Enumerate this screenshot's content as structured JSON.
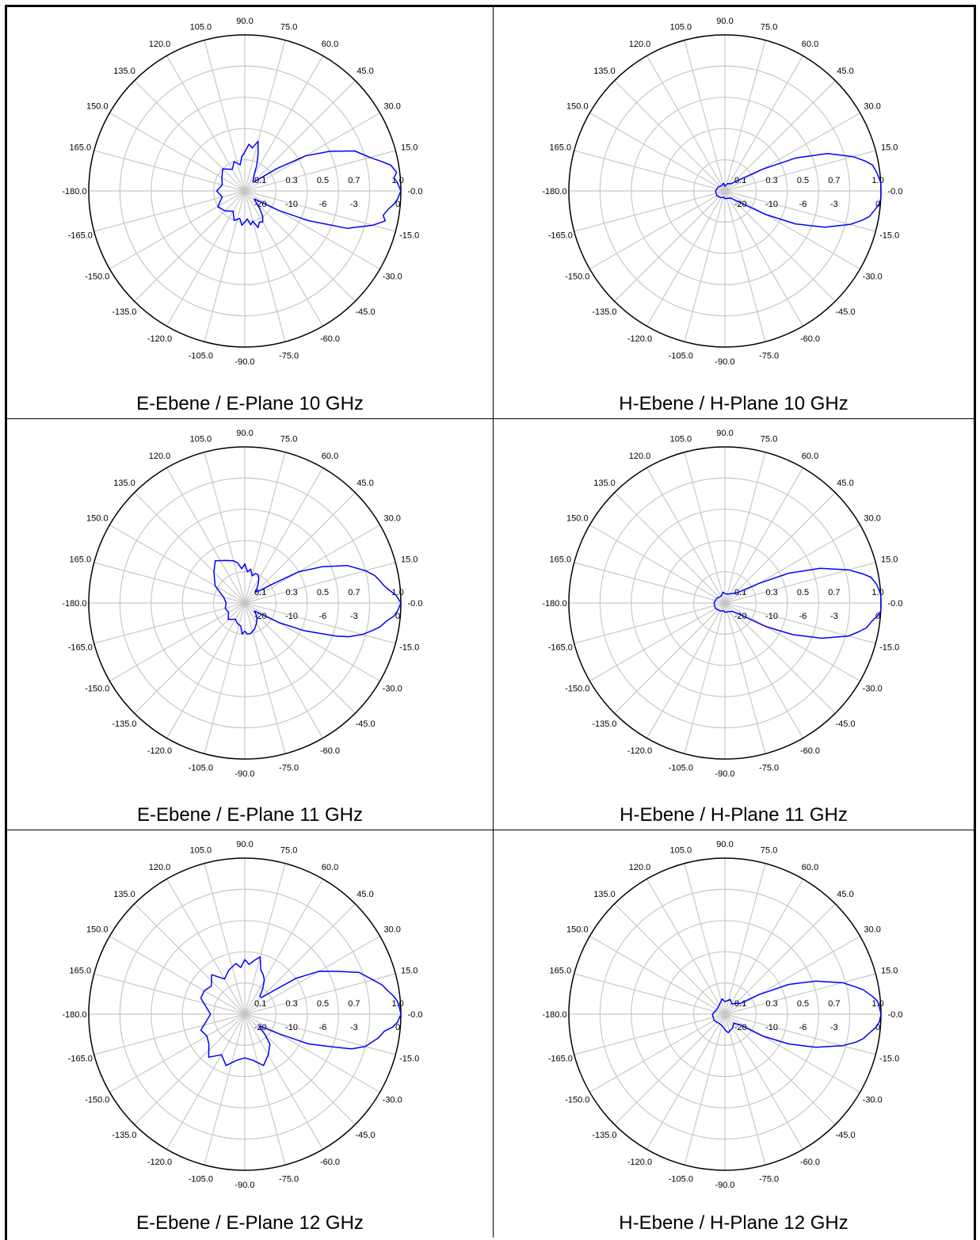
{
  "chart_data": [
    {
      "type": "polar",
      "title": "E-Ebene / E-Plane 10 GHz",
      "angle_labels": [
        "90.0",
        "75.0",
        "60.0",
        "45.0",
        "30.0",
        "15.0",
        "-0.0",
        "-15.0",
        "-30.0",
        "-45.0",
        "-60.0",
        "-75.0",
        "-90.0",
        "-105.0",
        "-120.0",
        "-135.0",
        "-150.0",
        "-165.0",
        "-180.0",
        "165.0",
        "150.0",
        "135.0",
        "120.0",
        "105.0"
      ],
      "radial_labels_linear": [
        "0.1",
        "0.3",
        "0.5",
        "0.7",
        "1.0"
      ],
      "radial_labels_db": [
        "-20",
        "-10",
        "-6",
        "-3",
        "0"
      ],
      "series": [
        {
          "color": "#0000ff",
          "angles_deg": [
            180,
            165,
            150,
            135,
            120,
            110,
            100,
            95,
            90,
            85,
            80,
            75,
            70,
            65,
            60,
            55,
            50,
            45,
            40,
            35,
            30,
            25,
            20,
            15,
            12,
            10,
            7,
            5,
            3,
            0,
            -3,
            -5,
            -7,
            -10,
            -12,
            -15,
            -18,
            -20,
            -25,
            -30,
            -35,
            -40,
            -45,
            -50,
            -55,
            -60,
            -65,
            -70,
            -75,
            -80,
            -85,
            -90,
            -95,
            -100,
            -110,
            -120,
            -135,
            -150,
            -165
          ],
          "values": [
            0.18,
            0.15,
            0.17,
            0.2,
            0.16,
            0.2,
            0.17,
            0.22,
            0.25,
            0.3,
            0.28,
            0.33,
            0.25,
            0.18,
            0.12,
            0.1,
            0.08,
            0.08,
            0.12,
            0.25,
            0.45,
            0.6,
            0.75,
            0.83,
            0.9,
            0.95,
            0.98,
            0.96,
            0.98,
            1.0,
            0.98,
            0.96,
            0.93,
            0.9,
            0.92,
            0.85,
            0.75,
            0.7,
            0.45,
            0.25,
            0.12,
            0.08,
            0.1,
            0.15,
            0.2,
            0.23,
            0.22,
            0.25,
            0.2,
            0.22,
            0.18,
            0.2,
            0.22,
            0.18,
            0.2,
            0.15,
            0.18,
            0.2,
            0.15
          ]
        }
      ]
    },
    {
      "type": "polar",
      "title": "H-Ebene / H-Plane 10 GHz",
      "angle_labels": [
        "90.0",
        "75.0",
        "60.0",
        "45.0",
        "30.0",
        "15.0",
        "-0.0",
        "-15.0",
        "-30.0",
        "-45.0",
        "-60.0",
        "-75.0",
        "-90.0",
        "-105.0",
        "-120.0",
        "-135.0",
        "-150.0",
        "-165.0",
        "-180.0",
        "165.0",
        "150.0",
        "135.0",
        "120.0",
        "105.0"
      ],
      "radial_labels_linear": [
        "0.1",
        "0.3",
        "0.5",
        "0.7",
        "1.0"
      ],
      "radial_labels_db": [
        "-20",
        "-10",
        "-6",
        "-3",
        "0"
      ],
      "series": [
        {
          "color": "#0000ff",
          "angles_deg": [
            180,
            150,
            120,
            100,
            90,
            70,
            50,
            40,
            30,
            25,
            20,
            15,
            12,
            10,
            7,
            5,
            3,
            0,
            -3,
            -5,
            -7,
            -10,
            -12,
            -15,
            -20,
            -25,
            -30,
            -40,
            -50,
            -70,
            -90,
            -100,
            -120,
            -150
          ],
          "values": [
            0.06,
            0.05,
            0.04,
            0.05,
            0.03,
            0.05,
            0.06,
            0.1,
            0.28,
            0.5,
            0.7,
            0.85,
            0.92,
            0.96,
            0.98,
            0.99,
            1.0,
            1.0,
            1.0,
            0.99,
            0.97,
            0.94,
            0.9,
            0.83,
            0.68,
            0.5,
            0.3,
            0.1,
            0.06,
            0.05,
            0.05,
            0.04,
            0.05,
            0.06
          ]
        }
      ]
    },
    {
      "type": "polar",
      "title": "E-Ebene / E-Plane 11 GHz",
      "angle_labels": [
        "90.0",
        "75.0",
        "60.0",
        "45.0",
        "30.0",
        "15.0",
        "-0.0",
        "-15.0",
        "-30.0",
        "-45.0",
        "-60.0",
        "-75.0",
        "-90.0",
        "-105.0",
        "-120.0",
        "-135.0",
        "-150.0",
        "-165.0",
        "-180.0",
        "165.0",
        "150.0",
        "135.0",
        "120.0",
        "105.0"
      ],
      "radial_labels_linear": [
        "0.1",
        "0.3",
        "0.5",
        "0.7",
        "1.0"
      ],
      "radial_labels_db": [
        "-20",
        "-10",
        "-6",
        "-3",
        "0"
      ],
      "series": [
        {
          "color": "#0000ff",
          "angles_deg": [
            180,
            165,
            150,
            135,
            125,
            115,
            105,
            100,
            95,
            90,
            85,
            80,
            75,
            70,
            65,
            60,
            55,
            50,
            45,
            40,
            35,
            30,
            25,
            20,
            15,
            12,
            10,
            7,
            5,
            3,
            0,
            -3,
            -5,
            -7,
            -10,
            -12,
            -15,
            -18,
            -20,
            -25,
            -30,
            -35,
            -40,
            -45,
            -50,
            -60,
            -70,
            -80,
            -85,
            -90,
            -95,
            -100,
            -110,
            -120,
            -135,
            -150,
            -165
          ],
          "values": [
            0.12,
            0.14,
            0.22,
            0.28,
            0.33,
            0.3,
            0.28,
            0.26,
            0.22,
            0.25,
            0.2,
            0.22,
            0.18,
            0.2,
            0.2,
            0.18,
            0.15,
            0.12,
            0.1,
            0.12,
            0.2,
            0.4,
            0.55,
            0.7,
            0.8,
            0.85,
            0.87,
            0.9,
            0.93,
            0.97,
            1.0,
            0.98,
            0.96,
            0.92,
            0.88,
            0.84,
            0.78,
            0.7,
            0.62,
            0.42,
            0.25,
            0.12,
            0.08,
            0.1,
            0.12,
            0.15,
            0.18,
            0.2,
            0.2,
            0.18,
            0.2,
            0.15,
            0.14,
            0.12,
            0.15,
            0.12,
            0.13
          ]
        }
      ]
    },
    {
      "type": "polar",
      "title": "H-Ebene / H-Plane 11 GHz",
      "angle_labels": [
        "90.0",
        "75.0",
        "60.0",
        "45.0",
        "30.0",
        "15.0",
        "-0.0",
        "-15.0",
        "-30.0",
        "-45.0",
        "-60.0",
        "-75.0",
        "-90.0",
        "-105.0",
        "-120.0",
        "-135.0",
        "-150.0",
        "-165.0",
        "-180.0",
        "165.0",
        "150.0",
        "135.0",
        "120.0",
        "105.0"
      ],
      "radial_labels_linear": [
        "0.1",
        "0.3",
        "0.5",
        "0.7",
        "1.0"
      ],
      "radial_labels_db": [
        "-20",
        "-10",
        "-6",
        "-3",
        "0"
      ],
      "series": [
        {
          "color": "#0000ff",
          "angles_deg": [
            180,
            150,
            120,
            100,
            90,
            70,
            50,
            40,
            30,
            25,
            20,
            15,
            12,
            10,
            7,
            5,
            3,
            0,
            -3,
            -5,
            -7,
            -10,
            -12,
            -15,
            -20,
            -25,
            -30,
            -40,
            -50,
            -70,
            -90,
            -100,
            -120,
            -150
          ],
          "values": [
            0.07,
            0.06,
            0.05,
            0.07,
            0.06,
            0.06,
            0.08,
            0.1,
            0.25,
            0.45,
            0.65,
            0.82,
            0.9,
            0.95,
            0.98,
            0.99,
            1.0,
            1.0,
            1.0,
            0.98,
            0.95,
            0.92,
            0.88,
            0.82,
            0.66,
            0.48,
            0.3,
            0.1,
            0.07,
            0.06,
            0.06,
            0.05,
            0.06,
            0.07
          ]
        }
      ]
    },
    {
      "type": "polar",
      "title": "E-Ebene / E-Plane 12 GHz",
      "angle_labels": [
        "90.0",
        "75.0",
        "60.0",
        "45.0",
        "30.0",
        "15.0",
        "-0.0",
        "-15.0",
        "-30.0",
        "-45.0",
        "-60.0",
        "-75.0",
        "-90.0",
        "-105.0",
        "-120.0",
        "-135.0",
        "-150.0",
        "-165.0",
        "-180.0",
        "165.0",
        "150.0",
        "135.0",
        "120.0",
        "105.0"
      ],
      "radial_labels_linear": [
        "0.1",
        "0.3",
        "0.5",
        "0.7",
        "1.0"
      ],
      "radial_labels_db": [
        "-20",
        "-10",
        "-6",
        "-3",
        "0"
      ],
      "series": [
        {
          "color": "#0000ff",
          "angles_deg": [
            180,
            170,
            160,
            150,
            140,
            130,
            120,
            110,
            100,
            95,
            90,
            85,
            80,
            75,
            70,
            65,
            60,
            55,
            50,
            45,
            40,
            35,
            30,
            25,
            20,
            15,
            12,
            10,
            7,
            5,
            3,
            0,
            -3,
            -5,
            -7,
            -10,
            -12,
            -15,
            -18,
            -20,
            -25,
            -30,
            -35,
            -40,
            -45,
            -50,
            -60,
            -70,
            -80,
            -90,
            -100,
            -110,
            -120,
            -130,
            -140,
            -150,
            -160,
            -170
          ],
          "values": [
            0.22,
            0.25,
            0.3,
            0.3,
            0.28,
            0.33,
            0.26,
            0.3,
            0.33,
            0.3,
            0.35,
            0.32,
            0.35,
            0.38,
            0.3,
            0.28,
            0.25,
            0.2,
            0.15,
            0.15,
            0.22,
            0.4,
            0.55,
            0.65,
            0.78,
            0.85,
            0.9,
            0.92,
            0.96,
            0.98,
            0.99,
            1.0,
            0.98,
            0.95,
            0.9,
            0.87,
            0.84,
            0.8,
            0.72,
            0.62,
            0.45,
            0.25,
            0.15,
            0.12,
            0.18,
            0.25,
            0.3,
            0.35,
            0.3,
            0.28,
            0.3,
            0.35,
            0.3,
            0.36,
            0.3,
            0.28,
            0.3,
            0.25
          ]
        }
      ]
    },
    {
      "type": "polar",
      "title": "H-Ebene / H-Plane 12 GHz",
      "angle_labels": [
        "90.0",
        "75.0",
        "60.0",
        "45.0",
        "30.0",
        "15.0",
        "-0.0",
        "-15.0",
        "-30.0",
        "-45.0",
        "-60.0",
        "-75.0",
        "-90.0",
        "-105.0",
        "-120.0",
        "-135.0",
        "-150.0",
        "-165.0",
        "-180.0",
        "165.0",
        "150.0",
        "135.0",
        "120.0",
        "105.0"
      ],
      "radial_labels_linear": [
        "0.1",
        "0.3",
        "0.5",
        "0.7",
        "1.0"
      ],
      "radial_labels_db": [
        "-20",
        "-10",
        "-6",
        "-3",
        "0"
      ],
      "series": [
        {
          "color": "#0000ff",
          "angles_deg": [
            180,
            150,
            120,
            100,
            90,
            70,
            55,
            45,
            35,
            30,
            25,
            20,
            15,
            12,
            10,
            7,
            5,
            3,
            0,
            -3,
            -5,
            -7,
            -10,
            -12,
            -15,
            -20,
            -25,
            -30,
            -35,
            -45,
            -60,
            -80,
            -90,
            -100,
            -120,
            -150
          ],
          "values": [
            0.08,
            0.06,
            0.07,
            0.1,
            0.08,
            0.1,
            0.08,
            0.1,
            0.12,
            0.25,
            0.45,
            0.62,
            0.78,
            0.85,
            0.9,
            0.95,
            0.98,
            0.99,
            1.0,
            0.99,
            0.97,
            0.94,
            0.9,
            0.86,
            0.78,
            0.62,
            0.45,
            0.28,
            0.12,
            0.08,
            0.1,
            0.12,
            0.1,
            0.08,
            0.07,
            0.08
          ]
        }
      ]
    }
  ]
}
